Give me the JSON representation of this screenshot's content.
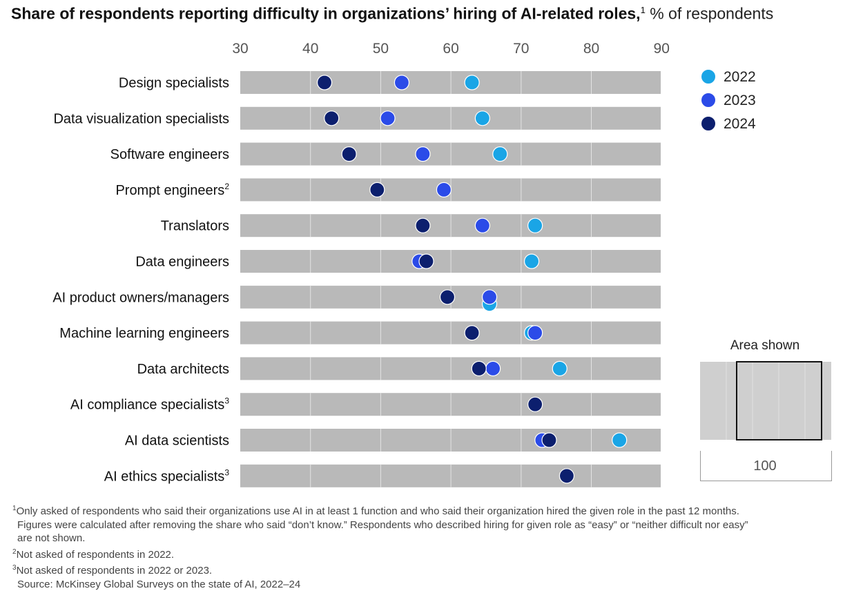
{
  "title": {
    "main": "Share of respondents reporting difficulty in organizations’ hiring of AI-related roles,",
    "sup": "1",
    "unit": "% of respondents"
  },
  "colors": {
    "2022": "#1AA5E6",
    "2023": "#2B4BE8",
    "2024": "#0C1F6E",
    "bar": "#B9B9B9",
    "grid": "#E3E3E3"
  },
  "chart_data": {
    "type": "scatter",
    "x_ticks": [
      30,
      40,
      50,
      60,
      70,
      80,
      90
    ],
    "xlim": [
      30,
      90
    ],
    "grid": true,
    "legend_position": "top-right",
    "series_names": [
      "2022",
      "2023",
      "2024"
    ],
    "categories": [
      {
        "label": "Design specialists",
        "sup": "",
        "2022": 63,
        "2023": 53,
        "2024": 42
      },
      {
        "label": "Data visualization specialists",
        "sup": "",
        "2022": 64.5,
        "2023": 51,
        "2024": 43
      },
      {
        "label": "Software engineers",
        "sup": "",
        "2022": 67,
        "2023": 56,
        "2024": 45.5
      },
      {
        "label": "Prompt engineers",
        "sup": "2",
        "2022": null,
        "2023": 59,
        "2024": 49.5
      },
      {
        "label": "Translators",
        "sup": "",
        "2022": 72,
        "2023": 64.5,
        "2024": 56
      },
      {
        "label": "Data engineers",
        "sup": "",
        "2022": 71.5,
        "2023": 55.5,
        "2024": 56.5
      },
      {
        "label": "AI product owners/managers",
        "sup": "",
        "2022": 65.5,
        "2023": 65.5,
        "2024": 59.5
      },
      {
        "label": "Machine learning engineers",
        "sup": "",
        "2022": 71.5,
        "2023": 72,
        "2024": 63
      },
      {
        "label": "Data architects",
        "sup": "",
        "2022": 75.5,
        "2023": 66,
        "2024": 64
      },
      {
        "label": "AI compliance specialists",
        "sup": "3",
        "2022": null,
        "2023": null,
        "2024": 72
      },
      {
        "label": "AI data scientists",
        "sup": "",
        "2022": 84,
        "2023": 73,
        "2024": 74
      },
      {
        "label": "AI ethics specialists",
        "sup": "3",
        "2022": null,
        "2023": null,
        "2024": 76.5
      }
    ]
  },
  "inset": {
    "label": "Area shown",
    "value": "100"
  },
  "footnotes": [
    {
      "sup": "1",
      "text": "Only asked of respondents who said their organizations use AI in at least 1 function and who said their organization hired the given role in the past 12 months."
    },
    {
      "sup": "",
      "text": "Figures were calculated after removing the share who said “don’t know.” Respondents who described hiring for given role as “easy” or “neither difficult nor easy”"
    },
    {
      "sup": "",
      "text": "are not shown."
    },
    {
      "sup": "2",
      "text": "Not asked of respondents in 2022."
    },
    {
      "sup": "3",
      "text": "Not asked of respondents in 2022 or 2023."
    },
    {
      "sup": "",
      "text": "Source: McKinsey Global Surveys on the state of AI, 2022–24"
    }
  ]
}
